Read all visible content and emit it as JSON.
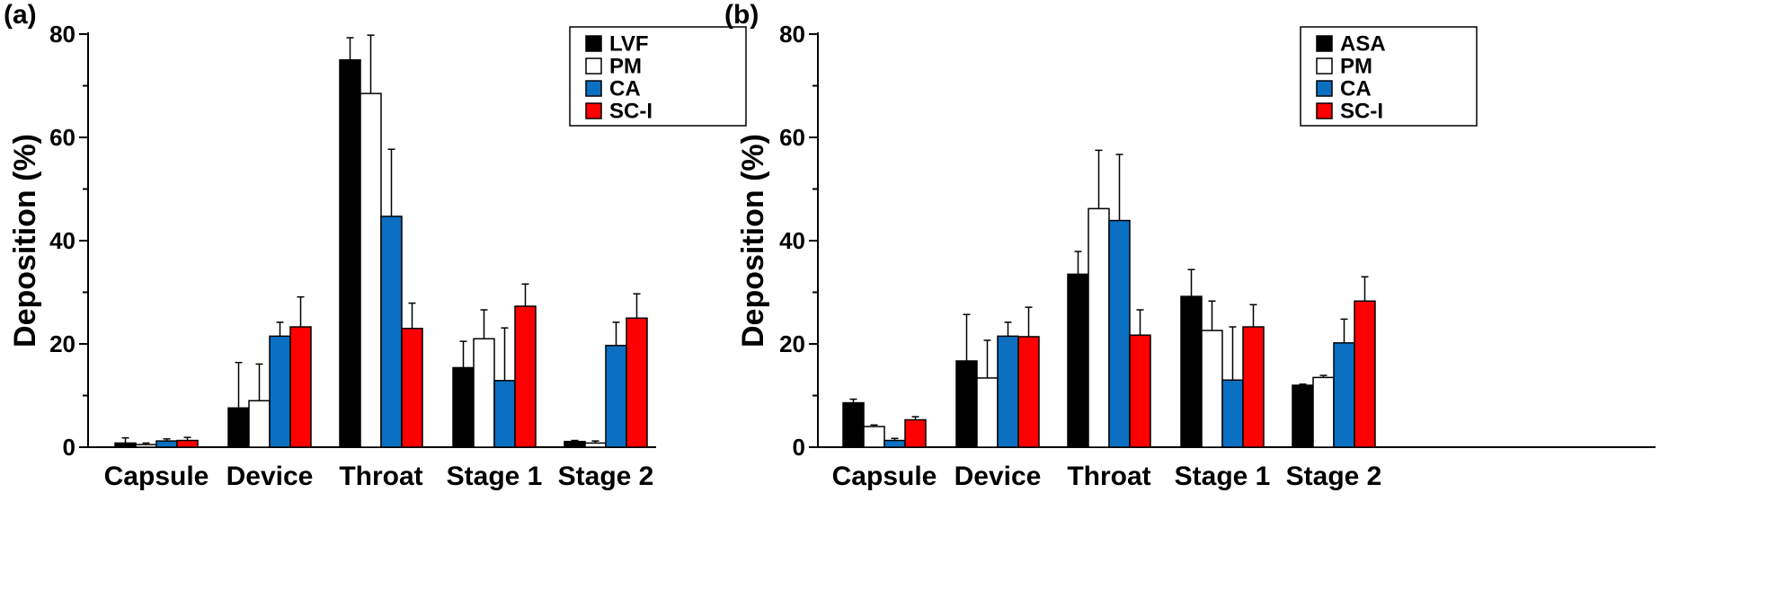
{
  "chart_data": [
    {
      "type": "bar",
      "panel_label": "(a)",
      "categories": [
        "Capsule",
        "Device",
        "Throat",
        "Stage 1",
        "Stage 2"
      ],
      "ylabel": "Deposition (%)",
      "xlabel": "",
      "ylim": [
        0,
        80
      ],
      "yticks": [
        0,
        20,
        40,
        60,
        80
      ],
      "legend_position": "top-right",
      "series": [
        {
          "name": "LVF",
          "color": "#000000",
          "values": [
            0.8,
            7.6,
            75.0,
            15.4,
            1.1
          ],
          "errors": [
            1.0,
            8.8,
            4.3,
            5.1,
            0.2
          ]
        },
        {
          "name": "PM",
          "color": "#ffffff",
          "values": [
            0.5,
            9.0,
            68.5,
            21.0,
            0.8
          ],
          "errors": [
            0.3,
            7.1,
            11.3,
            5.6,
            0.4
          ]
        },
        {
          "name": "CA",
          "color": "#0b6fc2",
          "values": [
            1.2,
            21.5,
            44.7,
            12.9,
            19.7
          ],
          "errors": [
            0.4,
            2.7,
            13.0,
            10.2,
            4.5
          ]
        },
        {
          "name": "SC-I",
          "color": "#ff0000",
          "values": [
            1.3,
            23.3,
            23.0,
            27.3,
            25.0
          ],
          "errors": [
            0.6,
            5.8,
            4.9,
            4.3,
            4.7
          ]
        }
      ]
    },
    {
      "type": "bar",
      "panel_label": "(b)",
      "categories": [
        "Capsule",
        "Device",
        "Throat",
        "Stage 1",
        "Stage 2"
      ],
      "ylabel": "Deposition (%)",
      "xlabel": "",
      "ylim": [
        0,
        80
      ],
      "yticks": [
        0,
        20,
        40,
        60,
        80
      ],
      "legend_position": "top-right",
      "series": [
        {
          "name": "ASA",
          "color": "#000000",
          "values": [
            8.6,
            16.7,
            33.5,
            29.2,
            12.0
          ],
          "errors": [
            0.7,
            9.0,
            4.4,
            5.2,
            0.2
          ]
        },
        {
          "name": "PM",
          "color": "#ffffff",
          "values": [
            4.0,
            13.4,
            46.2,
            22.6,
            13.5
          ],
          "errors": [
            0.3,
            7.3,
            11.3,
            5.7,
            0.4
          ]
        },
        {
          "name": "CA",
          "color": "#0b6fc2",
          "values": [
            1.3,
            21.5,
            43.9,
            13.0,
            20.2
          ],
          "errors": [
            0.4,
            2.7,
            12.8,
            10.3,
            4.6
          ]
        },
        {
          "name": "SC-I",
          "color": "#ff0000",
          "values": [
            5.3,
            21.4,
            21.7,
            23.3,
            28.3
          ],
          "errors": [
            0.6,
            5.7,
            4.9,
            4.3,
            4.7
          ]
        }
      ]
    }
  ]
}
